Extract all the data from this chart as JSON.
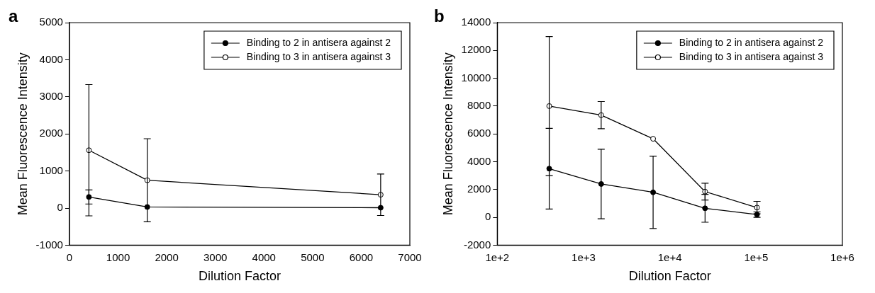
{
  "chart_data": [
    {
      "type": "line",
      "title": "a",
      "xlabel": "Dilution Factor",
      "ylabel": "Mean Fluorescence Intensity",
      "x": [
        400,
        1600,
        6400
      ],
      "xlim": [
        0,
        7000
      ],
      "xticks": [
        0,
        1000,
        2000,
        3000,
        4000,
        5000,
        6000,
        7000
      ],
      "ylim": [
        -1000,
        5000
      ],
      "yticks": [
        -1000,
        0,
        1000,
        2000,
        3000,
        4000,
        5000
      ],
      "grid": false,
      "legend": "top right",
      "marker": "circle",
      "series": [
        {
          "name": "Binding to 2 in antisera against 2",
          "color": "#000000",
          "values": [
            300,
            30,
            10
          ],
          "errors": [
            190,
            null,
            null
          ]
        },
        {
          "name": "Binding to 3 in antisera against 3",
          "color": "#ffffff",
          "values": [
            1560,
            750,
            360
          ],
          "errors": [
            1770,
            1120,
            560
          ]
        }
      ]
    },
    {
      "type": "line",
      "title": "b",
      "xlabel": "Dilution Factor",
      "ylabel": "Mean Fluorescence Intensity",
      "x": [
        400,
        1600,
        6400,
        25600,
        102400
      ],
      "log": "x",
      "xlim": [
        100,
        1000000
      ],
      "xticks": [
        {
          "value": 100,
          "label": "1e+2"
        },
        {
          "value": 1000,
          "label": "1e+3"
        },
        {
          "value": 10000,
          "label": "1e+4"
        },
        {
          "value": 100000,
          "label": "1e+5"
        },
        {
          "value": 1000000,
          "label": "1e+6"
        }
      ],
      "ylim": [
        -2000,
        14000
      ],
      "yticks": [
        -2000,
        0,
        2000,
        4000,
        6000,
        8000,
        10000,
        12000,
        14000
      ],
      "grid": false,
      "legend": "top right",
      "marker": "circle",
      "series": [
        {
          "name": "Binding to 2 in antisera against 2",
          "color": "#000000",
          "values": [
            3500,
            2400,
            1800,
            650,
            200
          ],
          "errors": [
            2900,
            2500,
            2600,
            1000,
            200
          ]
        },
        {
          "name": "Binding to 3 in antisera against 3",
          "color": "#ffffff",
          "values": [
            8000,
            7350,
            5650,
            1850,
            700
          ],
          "errors": [
            5000,
            975,
            null,
            600,
            450
          ]
        }
      ]
    }
  ]
}
